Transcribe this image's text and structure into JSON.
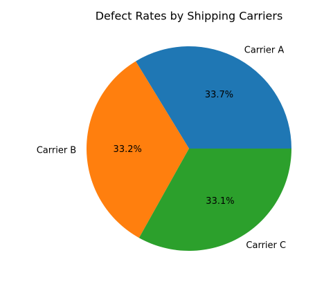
{
  "chart_data": {
    "type": "pie",
    "title": "Defect Rates by Shipping Carriers",
    "labels": [
      "Carrier A",
      "Carrier B",
      "Carrier C"
    ],
    "values": [
      33.7,
      33.2,
      33.1
    ],
    "percent_labels": [
      "33.7%",
      "33.2%",
      "33.1%"
    ],
    "colors": [
      "#1f77b4",
      "#ff7f0e",
      "#2ca02c"
    ],
    "start_angle_deg": 0,
    "direction": "counterclockwise"
  }
}
